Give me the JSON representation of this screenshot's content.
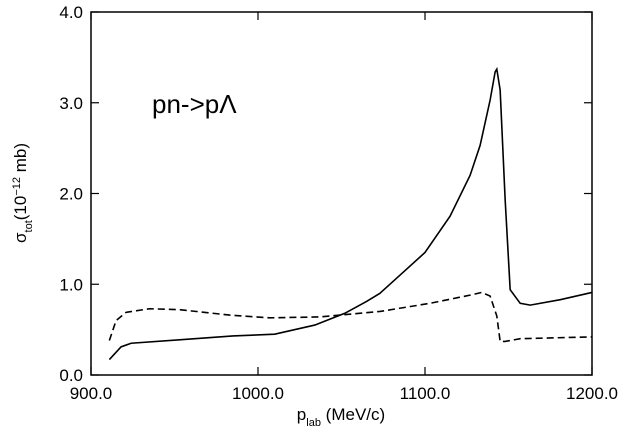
{
  "chart_data": {
    "type": "line",
    "annotation": "pn->pΛ",
    "xlabel": [
      {
        "text": "p"
      },
      {
        "text": "lab",
        "shift": "sub"
      },
      {
        "text": " (MeV/c)"
      }
    ],
    "ylabel": [
      {
        "text": "σ"
      },
      {
        "text": "tot",
        "shift": "sub"
      },
      {
        "text": "(10"
      },
      {
        "text": "−12",
        "shift": "super"
      },
      {
        "text": " mb)"
      }
    ],
    "xlim": [
      900,
      1200
    ],
    "ylim": [
      0,
      4
    ],
    "xticks": [
      {
        "value": 900,
        "label": "900.0"
      },
      {
        "value": 1000,
        "label": "1000.0"
      },
      {
        "value": 1100,
        "label": "1100.0"
      },
      {
        "value": 1200,
        "label": "1200.0"
      }
    ],
    "yticks": [
      {
        "value": 0,
        "label": "0.0"
      },
      {
        "value": 1,
        "label": "1.0"
      },
      {
        "value": 2,
        "label": "2.0"
      },
      {
        "value": 3,
        "label": "3.0"
      },
      {
        "value": 4,
        "label": "4.0"
      }
    ],
    "series": [
      {
        "color": "#000000",
        "dash": "solid",
        "x": [
          911,
          918,
          924,
          955,
          985,
          1010,
          1034,
          1052,
          1065,
          1073,
          1085,
          1100,
          1115,
          1127,
          1133,
          1139,
          1142,
          1143,
          1145,
          1148,
          1151,
          1157,
          1163,
          1181,
          1200
        ],
        "values": [
          0.17,
          0.31,
          0.35,
          0.39,
          0.43,
          0.45,
          0.55,
          0.68,
          0.81,
          0.9,
          1.1,
          1.35,
          1.75,
          2.2,
          2.53,
          3.03,
          3.34,
          3.37,
          3.14,
          1.93,
          0.94,
          0.79,
          0.77,
          0.83,
          0.91
        ]
      },
      {
        "color": "#000000",
        "dash": "dashed",
        "x": [
          911,
          915,
          921,
          935,
          953,
          983,
          1007,
          1037,
          1073,
          1103,
          1127,
          1134,
          1139,
          1143,
          1145,
          1148,
          1157,
          1200
        ],
        "values": [
          0.38,
          0.6,
          0.69,
          0.73,
          0.72,
          0.66,
          0.63,
          0.64,
          0.7,
          0.79,
          0.88,
          0.91,
          0.87,
          0.65,
          0.37,
          0.37,
          0.4,
          0.42
        ]
      }
    ]
  }
}
